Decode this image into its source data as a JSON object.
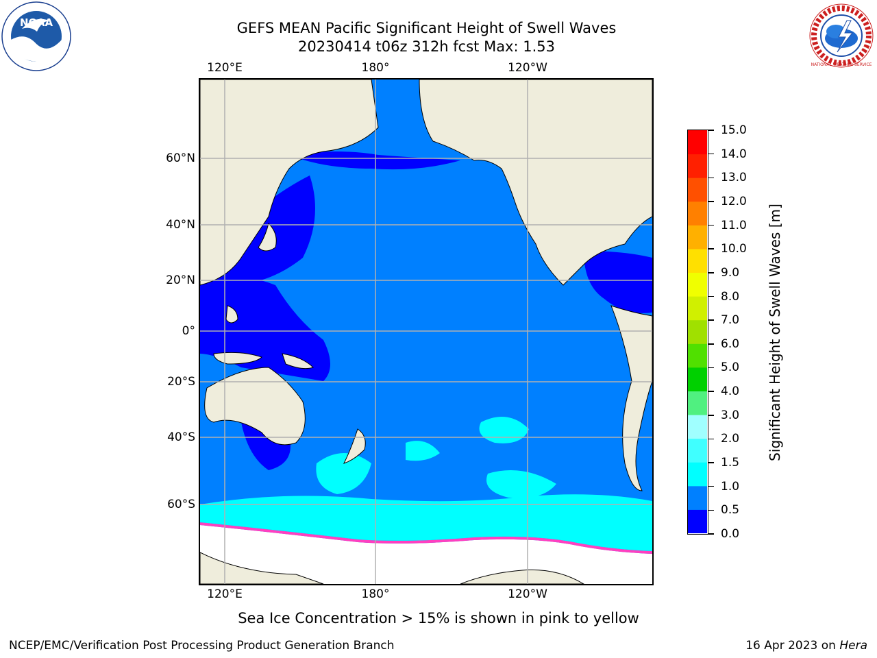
{
  "header": {
    "title_line1": "GEFS MEAN Pacific Significant Height of Swell Waves",
    "title_line2": "20230414 t06z 312h fcst   Max: 1.53"
  },
  "map": {
    "top_lon_labels": [
      "120°E",
      "180°",
      "120°W"
    ],
    "bottom_lon_labels": [
      "120°E",
      "180°",
      "120°W"
    ],
    "lat_labels": [
      "60°N",
      "40°N",
      "20°N",
      "0°",
      "20°S",
      "40°S",
      "60°S"
    ],
    "colors": {
      "land": "#efeddc",
      "ocean_main": "#0080ff",
      "ocean_low": "#0000ff",
      "swell_1_5": "#00ffff",
      "sea_ice": "#ffffff",
      "ice_edge": "#ff40c0",
      "gridline": "#b0b0b0"
    }
  },
  "colorbar": {
    "label": "Significant Height of Swell Waves [m]",
    "ticks": [
      "0.0",
      "0.5",
      "1.0",
      "1.5",
      "2.0",
      "3.0",
      "4.0",
      "5.0",
      "6.0",
      "7.0",
      "8.0",
      "9.0",
      "10.0",
      "11.0",
      "12.0",
      "13.0",
      "14.0",
      "15.0"
    ],
    "colors": [
      "#0000ff",
      "#0080ff",
      "#00ffff",
      "#40ffff",
      "#a0ffff",
      "#50f080",
      "#00d000",
      "#50e000",
      "#a0e000",
      "#d0f000",
      "#f0ff00",
      "#ffe000",
      "#ffb000",
      "#ff8000",
      "#ff5000",
      "#ff2000",
      "#ff0000"
    ]
  },
  "footer": {
    "note": "Sea Ice Concentration > 15% is shown in pink to yellow",
    "left": "NCEP/EMC/Verification Post Processing Product Generation Branch",
    "right_date": "16 Apr 2023 on",
    "right_host": "Hera"
  },
  "logos": {
    "noaa_text": "NOAA",
    "nws_text": "NATIONAL WEATHER SERVICE"
  }
}
